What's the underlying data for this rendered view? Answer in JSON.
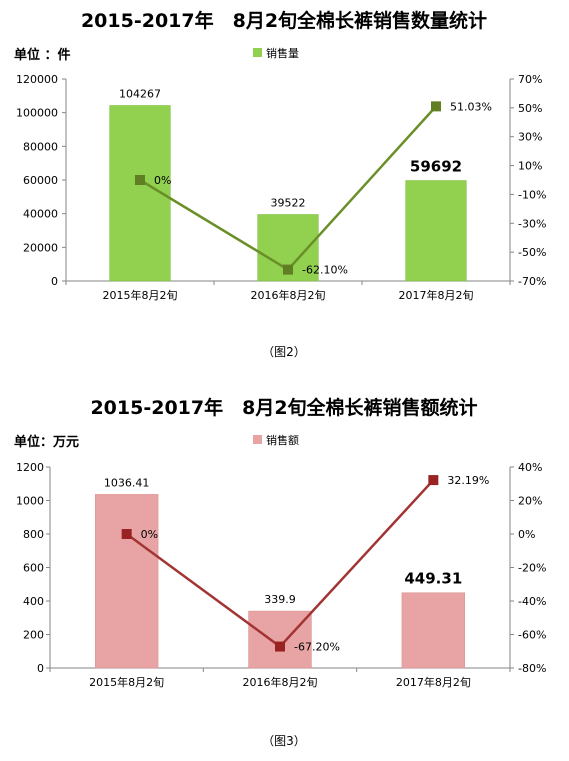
{
  "charts": [
    {
      "title": "2015-2017年　8月2旬全棉长裤销售数量统计",
      "unit": "单位 ：件",
      "caption": "（图2）",
      "colors": {
        "bar": "#92d050",
        "barEdge": "#7ab83c",
        "line": "#6a8f28",
        "marker": "#5f7f22"
      },
      "chart_data": {
        "type": "bar",
        "categories": [
          "2015年8月2旬",
          "2016年8月2旬",
          "2017年8月2旬"
        ],
        "series": [
          {
            "name": "销售量",
            "type": "bar",
            "axis": "left",
            "values": [
              104267,
              39522,
              59692
            ],
            "labels": [
              "104267",
              "39522",
              "59692"
            ]
          },
          {
            "type": "line",
            "axis": "right",
            "values": [
              0,
              -62.1,
              51.03
            ],
            "labels": [
              "0%",
              "-62.10%",
              "51.03%"
            ]
          }
        ],
        "ylim": [
          0,
          120000
        ],
        "yticks": [
          "0",
          "20000",
          "40000",
          "60000",
          "80000",
          "100000",
          "120000"
        ],
        "y2lim": [
          -70,
          70
        ],
        "y2ticks": [
          "-70%",
          "-50%",
          "-30%",
          "-10%",
          "10%",
          "30%",
          "50%",
          "70%"
        ],
        "highlight_index": 2,
        "legend": "top-center"
      }
    },
    {
      "title": "2015-2017年　8月2旬全棉长裤销售额统计",
      "unit": "单位：万元",
      "caption": "（图3）",
      "colors": {
        "bar": "#e8a4a4",
        "barEdge": "#d98c8c",
        "line": "#a23434",
        "marker": "#992222"
      },
      "chart_data": {
        "type": "bar",
        "categories": [
          "2015年8月2旬",
          "2016年8月2旬",
          "2017年8月2旬"
        ],
        "series": [
          {
            "name": "销售额",
            "type": "bar",
            "axis": "left",
            "values": [
              1036.41,
              339.9,
              449.31
            ],
            "labels": [
              "1036.41",
              "339.9",
              "449.31"
            ]
          },
          {
            "type": "line",
            "axis": "right",
            "values": [
              0,
              -67.2,
              32.19
            ],
            "labels": [
              "0%",
              "-67.20%",
              "32.19%"
            ]
          }
        ],
        "ylim": [
          0,
          1200
        ],
        "yticks": [
          "0",
          "200",
          "400",
          "600",
          "800",
          "1000",
          "1200"
        ],
        "y2lim": [
          -80,
          40
        ],
        "y2ticks": [
          "-80%",
          "-60%",
          "-40%",
          "-20%",
          "0%",
          "20%",
          "40%"
        ],
        "highlight_index": 2,
        "legend": "top-center"
      }
    }
  ]
}
